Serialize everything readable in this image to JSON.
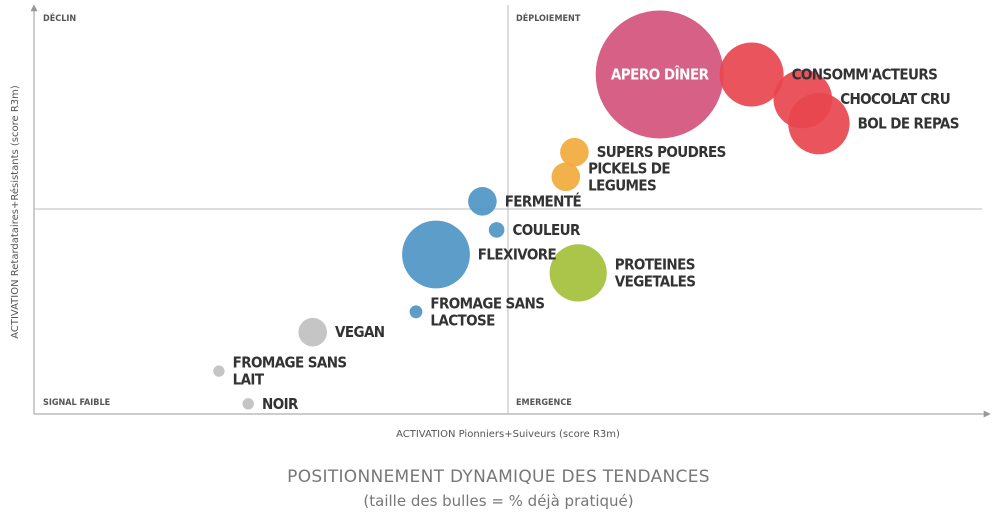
{
  "chart_data": {
    "type": "scatter",
    "title": "POSITIONNEMENT DYNAMIQUE DES TENDANCES",
    "subtitle": "(taille des bulles = % déjà pratiqué)",
    "xlabel": "ACTIVATION Pionniers+Suiveurs (score R3m)",
    "ylabel": "ACTIVATION Retardataires+Résistants (score R3m)",
    "xlim": [
      0,
      100
    ],
    "ylim": [
      0,
      100
    ],
    "grid": false,
    "quadrants": {
      "top_left": "DÉCLIN",
      "top_right": "DÉPLOIEMENT",
      "bottom_left": "SIGNAL FAIBLE",
      "bottom_right": "EMERGENCE"
    },
    "colors": {
      "red": "#e8474f",
      "pink": "#d4527c",
      "orange": "#f2aa3c",
      "blue": "#4f95c6",
      "green": "#a3c03a",
      "gray": "#c0c0c0",
      "axis": "#999999"
    },
    "points": [
      {
        "name": "APERO DÎNER",
        "x": 66,
        "y": 83,
        "size": 100,
        "color": "pink",
        "label_inside": true
      },
      {
        "name": "CONSOMM'ACTEURS",
        "x": 75.7,
        "y": 83,
        "size": 25,
        "color": "red"
      },
      {
        "name": "CHOCOLAT CRU",
        "x": 81.1,
        "y": 77,
        "size": 21,
        "color": "red"
      },
      {
        "name": "BOL DE REPAS",
        "x": 82.8,
        "y": 71,
        "size": 23,
        "color": "red"
      },
      {
        "name": "SUPERS POUDRES",
        "x": 57,
        "y": 64,
        "size": 5,
        "color": "orange"
      },
      {
        "name": "PICKELS DE\nLEGUMES",
        "x": 56.1,
        "y": 58,
        "size": 5,
        "color": "orange"
      },
      {
        "name": "FERMENTÉ",
        "x": 47.3,
        "y": 52,
        "size": 5,
        "color": "blue"
      },
      {
        "name": "COULEUR",
        "x": 48.8,
        "y": 45,
        "size": 1.5,
        "color": "blue"
      },
      {
        "name": "FLEXIVORE",
        "x": 42.4,
        "y": 39,
        "size": 28,
        "color": "blue"
      },
      {
        "name": "PROTEINES\nVEGETALES",
        "x": 57.4,
        "y": 34.5,
        "size": 20,
        "color": "green"
      },
      {
        "name": "FROMAGE SANS\nLACTOSE",
        "x": 40.3,
        "y": 25,
        "size": 1,
        "color": "blue"
      },
      {
        "name": "VEGAN",
        "x": 29.4,
        "y": 20,
        "size": 5,
        "color": "gray"
      },
      {
        "name": "FROMAGE SANS\nLAIT",
        "x": 19.5,
        "y": 10.5,
        "size": 0.8,
        "color": "gray"
      },
      {
        "name": "NOIR",
        "x": 22.6,
        "y": 2.5,
        "size": 0.8,
        "color": "gray"
      }
    ]
  }
}
